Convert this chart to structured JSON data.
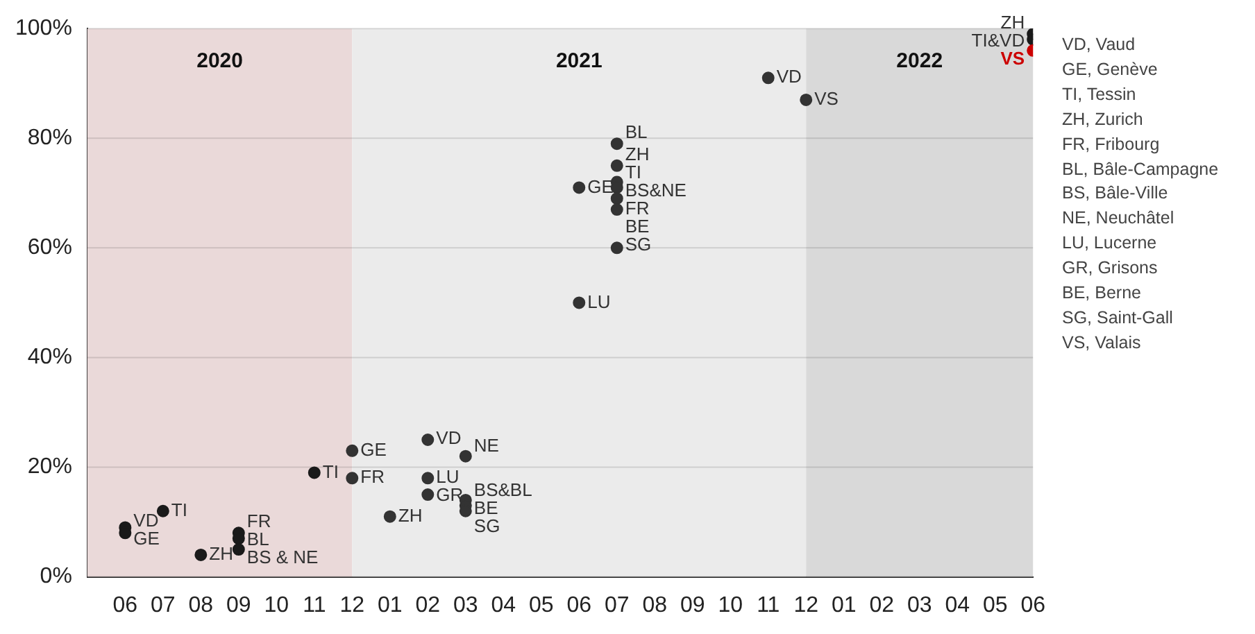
{
  "chart_data": {
    "type": "scatter",
    "series": [
      {
        "type": "scatter",
        "color": "#333333",
        "x": [
          "2020-06",
          "2020-06",
          "2020-07",
          "2020-08",
          "2020-09",
          "2020-09",
          "2020-09",
          "2020-11",
          "2020-12",
          "2020-12",
          "2021-01",
          "2021-02",
          "2021-02",
          "2021-02",
          "2021-03",
          "2021-03",
          "2021-03",
          "2021-03",
          "2021-06",
          "2021-06",
          "2021-07",
          "2021-07",
          "2021-07",
          "2021-07",
          "2021-07",
          "2021-07",
          "2021-07",
          "2021-11",
          "2021-12",
          "2022-06",
          "2022-06",
          "2022-06"
        ],
        "values": [
          9,
          8,
          12,
          4,
          8,
          7,
          5,
          19,
          23,
          18,
          11,
          25,
          18,
          15,
          22,
          14,
          13,
          12,
          71,
          50,
          79,
          75,
          72,
          71,
          69,
          67,
          60,
          91,
          87,
          99,
          98,
          96
        ],
        "colors": [
          "#1a1a1a",
          "#1a1a1a",
          "#1a1a1a",
          "#1a1a1a",
          "#1a1a1a",
          "#1a1a1a",
          "#1a1a1a",
          "#1a1a1a",
          "#333333",
          "#333333",
          "#333333",
          "#333333",
          "#333333",
          "#333333",
          "#333333",
          "#333333",
          "#333333",
          "#333333",
          "#333333",
          "#333333",
          "#333333",
          "#333333",
          "#333333",
          "#333333",
          "#333333",
          "#333333",
          "#333333",
          "#333333",
          "#333333",
          "#1a1a1a",
          "#1a1a1a",
          "#cc0000"
        ]
      }
    ],
    "marker": "circle",
    "xlim": [
      "2020-05",
      "2022-06"
    ],
    "xticks": [
      {
        "value": "2020-06",
        "label": "06"
      },
      {
        "value": "2020-07",
        "label": "07"
      },
      {
        "value": "2020-08",
        "label": "08"
      },
      {
        "value": "2020-09",
        "label": "09"
      },
      {
        "value": "2020-10",
        "label": "10"
      },
      {
        "value": "2020-11",
        "label": "11"
      },
      {
        "value": "2020-12",
        "label": "12"
      },
      {
        "value": "2021-01",
        "label": "01"
      },
      {
        "value": "2021-02",
        "label": "02"
      },
      {
        "value": "2021-03",
        "label": "03"
      },
      {
        "value": "2021-04",
        "label": "04"
      },
      {
        "value": "2021-05",
        "label": "05"
      },
      {
        "value": "2021-06",
        "label": "06"
      },
      {
        "value": "2021-07",
        "label": "07"
      },
      {
        "value": "2021-08",
        "label": "08"
      },
      {
        "value": "2021-09",
        "label": "09"
      },
      {
        "value": "2021-10",
        "label": "10"
      },
      {
        "value": "2021-11",
        "label": "11"
      },
      {
        "value": "2021-12",
        "label": "12"
      },
      {
        "value": "2022-01",
        "label": "01"
      },
      {
        "value": "2022-02",
        "label": "02"
      },
      {
        "value": "2022-03",
        "label": "03"
      },
      {
        "value": "2022-04",
        "label": "04"
      },
      {
        "value": "2022-05",
        "label": "05"
      },
      {
        "value": "2022-06",
        "label": "06"
      }
    ],
    "ylim": [
      0,
      100
    ],
    "yticks": [
      {
        "value": 0,
        "label": "0%"
      },
      {
        "value": 20,
        "label": "20%"
      },
      {
        "value": 40,
        "label": "40%"
      },
      {
        "value": 60,
        "label": "60%"
      },
      {
        "value": 80,
        "label": "80%"
      },
      {
        "value": 100,
        "label": "100%"
      }
    ],
    "grid": "y",
    "bands": [
      {
        "axis": "x",
        "from": "2020-05",
        "to": "2020-12",
        "label": "2020",
        "color": "#ead9d9"
      },
      {
        "axis": "x",
        "from": "2020-12",
        "to": "2021-12",
        "label": "2021",
        "color": "#ebebeb"
      },
      {
        "axis": "x",
        "from": "2021-12",
        "to": "2022-06",
        "label": "2022",
        "color": "#d9d9d9"
      }
    ],
    "annotations": [
      {
        "text": "VD",
        "x": "2020-06",
        "y": 9
      },
      {
        "text": "GE",
        "x": "2020-06",
        "y": 8
      },
      {
        "text": "TI",
        "x": "2020-07",
        "y": 12
      },
      {
        "text": "ZH",
        "x": "2020-08",
        "y": 4
      },
      {
        "text": "FR",
        "x": "2020-09",
        "y": 8
      },
      {
        "text": "BL",
        "x": "2020-09",
        "y": 7
      },
      {
        "text": "BS & NE",
        "x": "2020-09",
        "y": 5
      },
      {
        "text": "TI",
        "x": "2020-11",
        "y": 19
      },
      {
        "text": "GE",
        "x": "2020-12",
        "y": 23
      },
      {
        "text": "FR",
        "x": "2020-12",
        "y": 18
      },
      {
        "text": "ZH",
        "x": "2021-01",
        "y": 11
      },
      {
        "text": "VD",
        "x": "2021-02",
        "y": 25
      },
      {
        "text": "LU",
        "x": "2021-02",
        "y": 18
      },
      {
        "text": "GR",
        "x": "2021-02",
        "y": 15
      },
      {
        "text": "NE",
        "x": "2021-03",
        "y": 22
      },
      {
        "text": "BS&BL",
        "x": "2021-03",
        "y": 14
      },
      {
        "text": "BE",
        "x": "2021-03",
        "y": 13
      },
      {
        "text": "SG",
        "x": "2021-03",
        "y": 12
      },
      {
        "text": "GE",
        "x": "2021-06",
        "y": 71
      },
      {
        "text": "LU",
        "x": "2021-06",
        "y": 50
      },
      {
        "text": "BL",
        "x": "2021-07",
        "y": 79
      },
      {
        "text": "ZH",
        "x": "2021-07",
        "y": 75
      },
      {
        "text": "TI",
        "x": "2021-07",
        "y": 72
      },
      {
        "text": "BS&NE",
        "x": "2021-07",
        "y": 71
      },
      {
        "text": "FR",
        "x": "2021-07",
        "y": 69
      },
      {
        "text": "BE",
        "x": "2021-07",
        "y": 67
      },
      {
        "text": "SG",
        "x": "2021-07",
        "y": 60
      },
      {
        "text": "VD",
        "x": "2021-11",
        "y": 91
      },
      {
        "text": "VS",
        "x": "2021-12",
        "y": 87
      },
      {
        "text": "ZH",
        "x": "2022-06",
        "y": 99
      },
      {
        "text": "TI&VD",
        "x": "2022-06",
        "y": 98
      },
      {
        "text": "VS",
        "x": "2022-06",
        "y": 96
      },
      "VD, Vaud",
      "GE, Genève",
      "TI, Tessin",
      "ZH, Zurich",
      "FR, Fribourg",
      "BL, Bâle-Campagne",
      "BS, Bâle-Ville",
      "NE, Neuchâtel",
      "LU, Lucerne",
      "GR, Grisons",
      "BE, Berne",
      "SG, Saint-Gall",
      "VS, Valais"
    ]
  }
}
